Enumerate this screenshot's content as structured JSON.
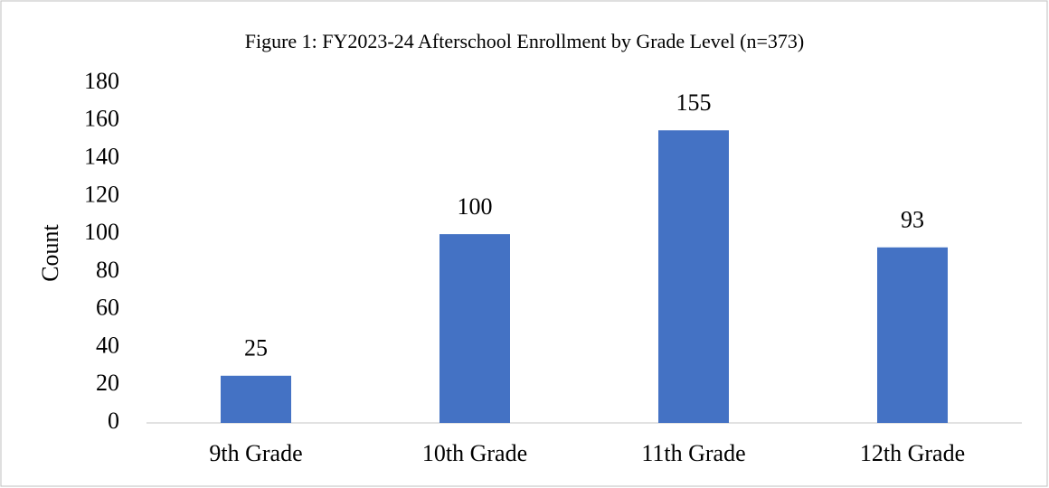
{
  "chart_data": {
    "type": "bar",
    "title": "Figure 1: FY2023-24 Afterschool Enrollment by Grade Level (n=373)",
    "y_label": "Count",
    "categories": [
      "9th Grade",
      "10th Grade",
      "11th Grade",
      "12th Grade"
    ],
    "values": [
      25,
      100,
      155,
      93
    ],
    "color": "#4472c4",
    "ylim": [
      0,
      180
    ],
    "yticks": [
      0,
      20,
      40,
      60,
      80,
      100,
      120,
      140,
      160,
      180
    ],
    "grid": false
  }
}
